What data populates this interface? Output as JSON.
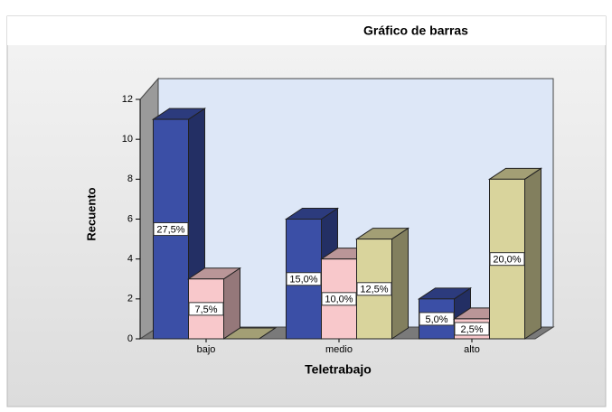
{
  "chart_data": {
    "type": "bar3d",
    "title": "Gráfico de barras",
    "x_label": "Teletrabajo",
    "y_label": "Recuento",
    "categories": [
      "bajo",
      "medio",
      "alto"
    ],
    "series": [
      {
        "color": "#3b4fa6",
        "values": [
          11,
          6,
          2
        ],
        "value_labels": [
          "27,5%",
          "15,0%",
          "5,0%"
        ]
      },
      {
        "color": "#f8c8cb",
        "values": [
          3,
          4,
          1
        ],
        "value_labels": [
          "7,5%",
          "10,0%",
          "2,5%"
        ]
      },
      {
        "color": "#d9d49c",
        "values": [
          0,
          5,
          8
        ],
        "value_labels": [
          null,
          "12,5%",
          "20,0%"
        ]
      }
    ],
    "ylim": [
      0,
      12
    ],
    "yticks": [
      0,
      2,
      4,
      6,
      8,
      10,
      12
    ]
  }
}
